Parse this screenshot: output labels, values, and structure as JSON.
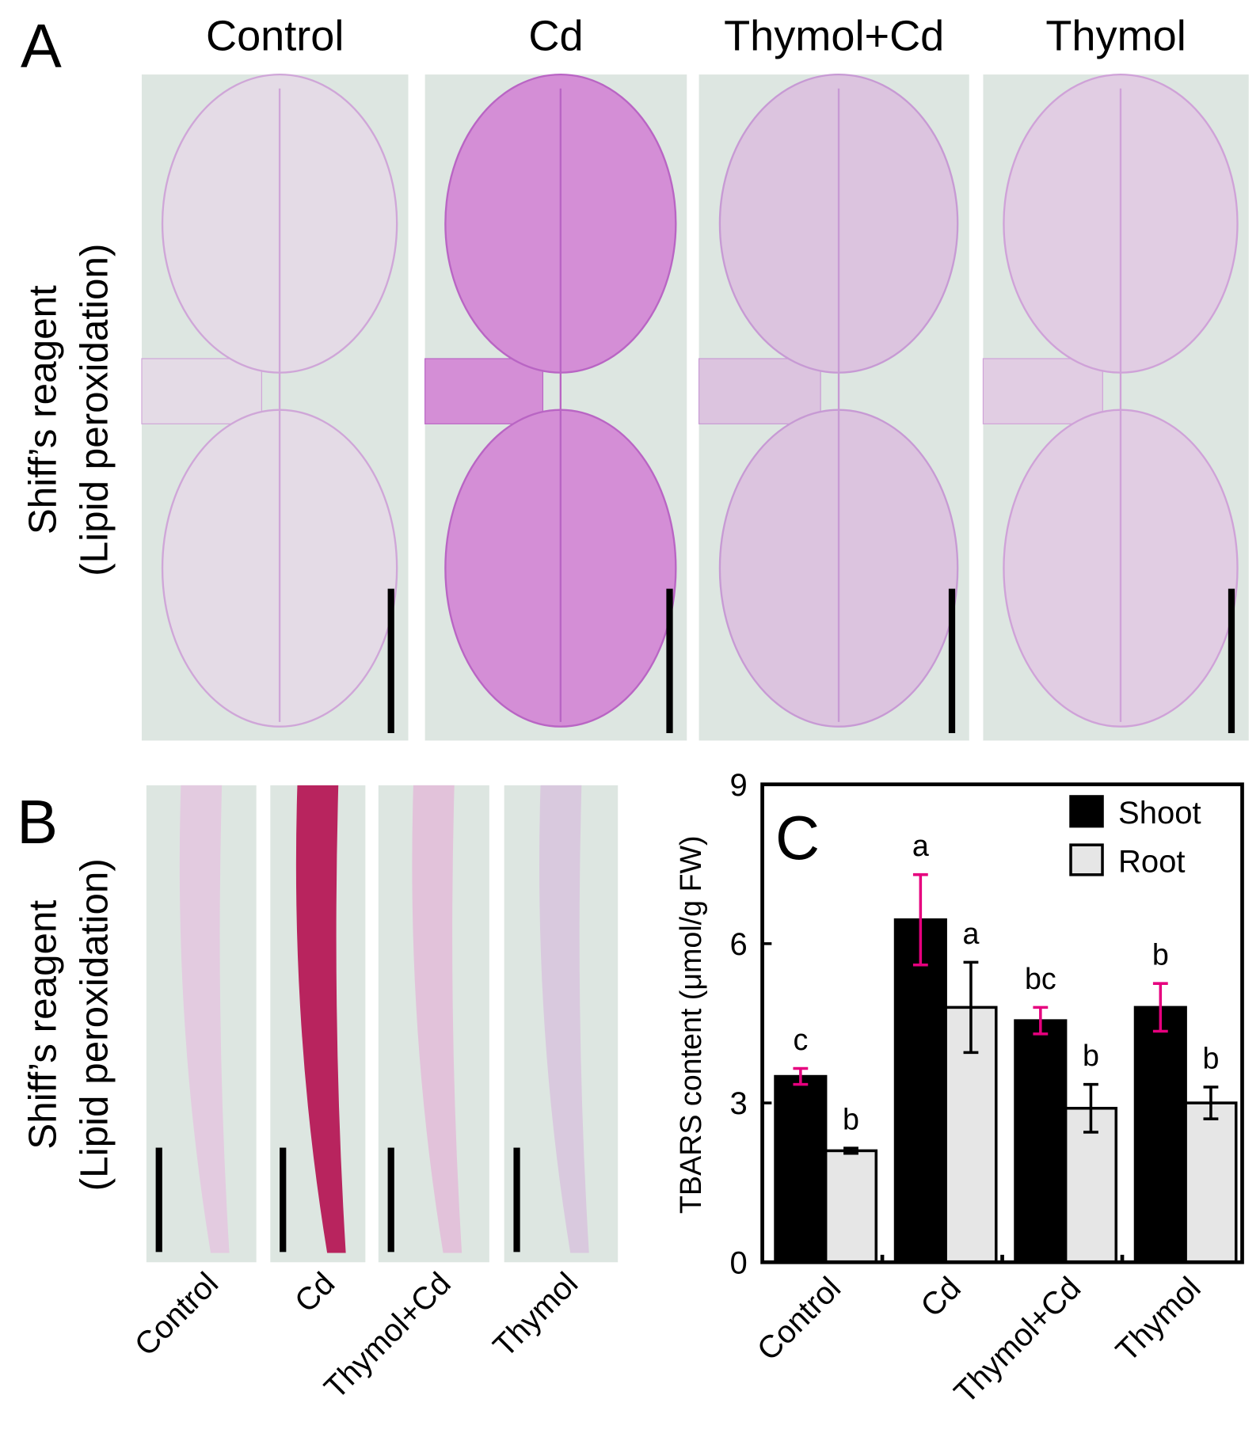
{
  "panel_a": {
    "label": "A",
    "columns": [
      "Control",
      "Cd",
      "Thymol+Cd",
      "Thymol"
    ],
    "ylabel": [
      "Shiff’s reagent",
      "(Lipid peroxidation)"
    ]
  },
  "panel_b": {
    "label": "B",
    "columns": [
      "Control",
      "Cd",
      "Thymol+Cd",
      "Thymol"
    ],
    "ylabel": [
      "Shiff’s reagent",
      "(Lipid peroxidation)"
    ]
  },
  "chart_data": {
    "type": "bar",
    "label": "C",
    "ylabel": "TBARS content (μmol/g FW)",
    "categories": [
      "Control",
      "Cd",
      "Thymol+Cd",
      "Thymol"
    ],
    "series": [
      {
        "name": "Shoot",
        "color": "#000000",
        "error_color": "#e6007e",
        "values": [
          3.5,
          6.45,
          4.55,
          4.8
        ],
        "errors": [
          0.15,
          0.85,
          0.25,
          0.45
        ],
        "letters": [
          "c",
          "a",
          "bc",
          "b"
        ]
      },
      {
        "name": "Root",
        "color": "#e6e6e6",
        "error_color": "#000000",
        "values": [
          2.1,
          4.8,
          2.9,
          3.0
        ],
        "errors": [
          0.05,
          0.85,
          0.45,
          0.3
        ],
        "letters": [
          "b",
          "a",
          "b",
          "b"
        ]
      }
    ],
    "ylim": [
      0,
      9
    ],
    "yticks": [
      0,
      3,
      6,
      9
    ],
    "legend": "upper-right"
  }
}
